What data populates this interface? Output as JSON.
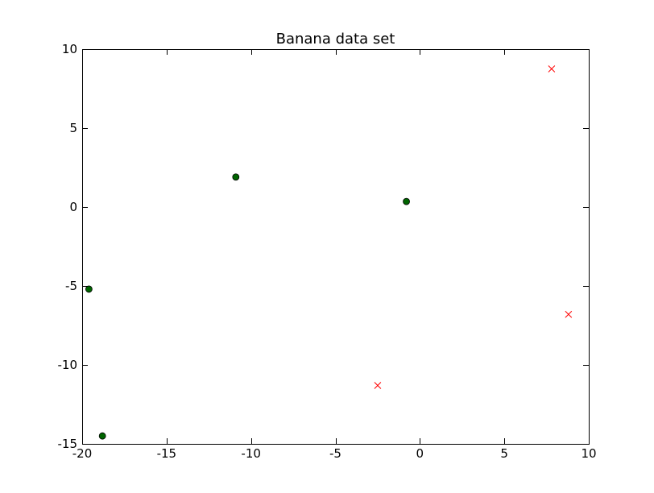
{
  "chart_data": {
    "type": "scatter",
    "title": "Banana data set",
    "xlabel": "",
    "ylabel": "",
    "xlim": [
      -20,
      10
    ],
    "ylim": [
      -15,
      10
    ],
    "xticks": [
      -20,
      -15,
      -10,
      -5,
      0,
      5,
      10
    ],
    "yticks": [
      -15,
      -10,
      -5,
      0,
      5,
      10
    ],
    "grid": false,
    "series": [
      {
        "marker": "circle",
        "color": "#006400",
        "edge_color": "#000000",
        "points": [
          {
            "x": -19.6,
            "y": -5.2
          },
          {
            "x": -18.8,
            "y": -14.5
          },
          {
            "x": -10.9,
            "y": 1.9
          },
          {
            "x": -0.8,
            "y": 0.35
          }
        ]
      },
      {
        "marker": "x",
        "color": "#ff0000",
        "points": [
          {
            "x": 7.8,
            "y": 8.75
          },
          {
            "x": 8.8,
            "y": -6.8
          },
          {
            "x": -2.5,
            "y": -11.3
          }
        ]
      }
    ]
  }
}
